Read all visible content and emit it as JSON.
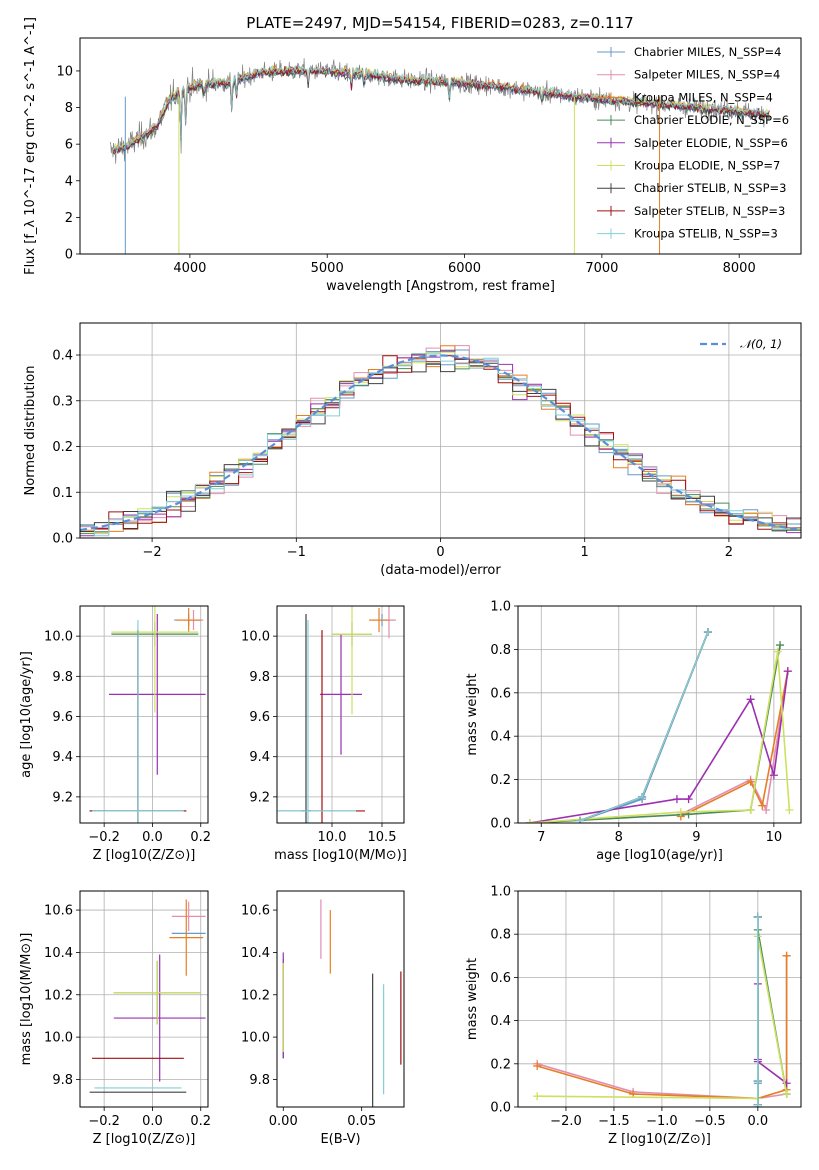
{
  "chart_data": [
    {
      "id": "spectrum",
      "type": "line",
      "title": "PLATE=2497, MJD=54154, FIBERID=0283, z=0.117",
      "xlabel": "wavelength [Angstrom, rest frame]",
      "ylabel": "Flux [f_λ 10^-17 erg cm^-2 s^-1 A^-1]",
      "xlim": [
        3200,
        8450
      ],
      "ylim": [
        0,
        11.8
      ],
      "xticks": [
        "4000",
        "5000",
        "6000",
        "7000",
        "8000"
      ],
      "yticks": [
        "0",
        "2",
        "4",
        "6",
        "8",
        "10"
      ],
      "grid": false,
      "legend_position": "top-right",
      "observed_spectrum_color": "#808080",
      "observed_range": [
        3420,
        8220
      ],
      "spectrum_shape": [
        [
          3420,
          5.6
        ],
        [
          3550,
          5.9
        ],
        [
          3650,
          6.4
        ],
        [
          3760,
          7.0
        ],
        [
          3850,
          8.4
        ],
        [
          3950,
          9.0
        ],
        [
          4100,
          9.3
        ],
        [
          4300,
          9.4
        ],
        [
          4500,
          9.9
        ],
        [
          4700,
          10.0
        ],
        [
          5000,
          10.0
        ],
        [
          5300,
          9.8
        ],
        [
          5600,
          9.5
        ],
        [
          5900,
          9.4
        ],
        [
          6200,
          9.2
        ],
        [
          6500,
          8.9
        ],
        [
          6800,
          8.6
        ],
        [
          7100,
          8.4
        ],
        [
          7400,
          8.2
        ],
        [
          7700,
          8.0
        ],
        [
          8000,
          7.8
        ],
        [
          8220,
          7.6
        ]
      ],
      "series": [
        {
          "name": "Chabrier MILES, N_SSP=4",
          "color": "#6699cc"
        },
        {
          "name": "Salpeter MILES, N_SSP=4",
          "color": "#e28fb0"
        },
        {
          "name": "Kroupa MILES, N_SSP=4",
          "color": "#e67e22"
        },
        {
          "name": "Chabrier ELODIE, N_SSP=6",
          "color": "#4a8a5a"
        },
        {
          "name": "Salpeter ELODIE, N_SSP=6",
          "color": "#9b30b0"
        },
        {
          "name": "Kroupa ELODIE, N_SSP=7",
          "color": "#cfe060"
        },
        {
          "name": "Chabrier STELIB, N_SSP=3",
          "color": "#404040"
        },
        {
          "name": "Salpeter STELIB, N_SSP=3",
          "color": "#a01010"
        },
        {
          "name": "Kroupa STELIB, N_SSP=3",
          "color": "#80d0d8"
        }
      ]
    },
    {
      "id": "residuals",
      "type": "histogram",
      "xlabel": "(data-model)/error",
      "ylabel": "Normed distribution",
      "xlim": [
        -2.5,
        2.5
      ],
      "ylim": [
        0,
        0.47
      ],
      "xticks": [
        "−2",
        "−1",
        "0",
        "1",
        "2"
      ],
      "yticks": [
        "0.0",
        "0.1",
        "0.2",
        "0.3",
        "0.4"
      ],
      "grid": true,
      "legend_position": "top-right",
      "reference_curve": {
        "name": "𝒩(0, 1)",
        "mean": 0,
        "sigma": 1,
        "color": "#5a8fd8"
      },
      "bin_width": 0.1
    },
    {
      "id": "age-Z",
      "type": "errorbar",
      "xlabel": "Z [log10(Z/Z⊙)]",
      "ylabel": "age  [log10(age/yr)]",
      "xlim": [
        -0.3,
        0.23
      ],
      "ylim": [
        9.07,
        10.15
      ],
      "xticks": [
        "−0.2",
        "0.0",
        "0.2"
      ],
      "yticks": [
        "9.2",
        "9.4",
        "9.6",
        "9.8",
        "10.0"
      ],
      "grid": true,
      "points": [
        {
          "color": "#6699cc",
          "x": 0.15,
          "y": 10.08,
          "xe": 0.06,
          "ye": 0.03
        },
        {
          "color": "#e28fb0",
          "x": 0.17,
          "y": 10.08,
          "xe": 0.04,
          "ye": 0.05
        },
        {
          "color": "#e67e22",
          "x": 0.15,
          "y": 10.08,
          "xe": 0.05,
          "ye": 0.06
        },
        {
          "color": "#4a8a5a",
          "x": 0.01,
          "y": 10.01,
          "xe": 0.18,
          "ye": 0.06
        },
        {
          "color": "#9b30b0",
          "x": 0.02,
          "y": 9.71,
          "xe": 0.2,
          "ye": 0.4
        },
        {
          "color": "#cfe060",
          "x": 0.01,
          "y": 10.02,
          "xe": 0.18,
          "ye": 0.4
        },
        {
          "color": "#404040",
          "x": -0.06,
          "y": 9.13,
          "xe": 0.2,
          "ye": 0.9
        },
        {
          "color": "#a01010",
          "x": -0.06,
          "y": 9.13,
          "xe": 0.2,
          "ye": 0.9
        },
        {
          "color": "#80d0d8",
          "x": -0.06,
          "y": 9.13,
          "xe": 0.19,
          "ye": 0.95
        }
      ]
    },
    {
      "id": "age-mass",
      "type": "errorbar",
      "xlabel": "mass [log10(M/M⊙)]",
      "ylabel": "",
      "xlim": [
        9.45,
        10.72
      ],
      "ylim": [
        9.07,
        10.15
      ],
      "xticks": [
        "10.0",
        "10.5"
      ],
      "yticks": [
        "9.2",
        "9.4",
        "9.6",
        "9.8",
        "10.0"
      ],
      "grid": true,
      "points": [
        {
          "color": "#6699cc",
          "x": 10.5,
          "y": 10.08,
          "xe": 0.12,
          "ye": 0.03
        },
        {
          "color": "#e28fb0",
          "x": 10.57,
          "y": 10.08,
          "xe": 0.07,
          "ye": 0.09
        },
        {
          "color": "#e67e22",
          "x": 10.47,
          "y": 10.08,
          "xe": 0.1,
          "ye": 0.06
        },
        {
          "color": "#4a8a5a",
          "x": 10.2,
          "y": 10.01,
          "xe": 0.2,
          "ye": 0.06
        },
        {
          "color": "#9b30b0",
          "x": 10.09,
          "y": 9.71,
          "xe": 0.21,
          "ye": 0.3
        },
        {
          "color": "#cfe060",
          "x": 10.2,
          "y": 10.01,
          "xe": 0.2,
          "ye": 0.4
        },
        {
          "color": "#404040",
          "x": 9.74,
          "y": 9.13,
          "xe": 0.05,
          "ye": 0.98
        },
        {
          "color": "#a01010",
          "x": 9.9,
          "y": 9.13,
          "xe": 0.43,
          "ye": 0.9
        },
        {
          "color": "#80d0d8",
          "x": 9.76,
          "y": 9.13,
          "xe": 0.48,
          "ye": 0.95
        }
      ]
    },
    {
      "id": "weight-age",
      "type": "line",
      "xlabel": "age  [log10(age/yr)]",
      "ylabel": "mass weight",
      "xlim": [
        6.7,
        10.35
      ],
      "ylim": [
        0,
        1.0
      ],
      "xticks": [
        "7",
        "8",
        "9",
        "10"
      ],
      "yticks": [
        "0.0",
        "0.2",
        "0.4",
        "0.6",
        "0.8",
        "1.0"
      ],
      "grid": true,
      "series": [
        {
          "color": "#6699cc",
          "x": [
            7.5,
            8.3,
            9.15
          ],
          "y": [
            0.01,
            0.11,
            0.88
          ]
        },
        {
          "color": "#e28fb0",
          "x": [
            8.8,
            9.7,
            9.9,
            10.18
          ],
          "y": [
            0.04,
            0.2,
            0.06,
            0.7
          ]
        },
        {
          "color": "#e67e22",
          "x": [
            8.8,
            9.7,
            9.85,
            10.18
          ],
          "y": [
            0.03,
            0.19,
            0.08,
            0.7
          ]
        },
        {
          "color": "#4a8a5a",
          "x": [
            6.85,
            8.9,
            9.7,
            10.08
          ],
          "y": [
            0.0,
            0.04,
            0.06,
            0.82
          ]
        },
        {
          "color": "#9b30b0",
          "x": [
            6.85,
            8.75,
            8.9,
            9.7,
            10.0,
            10.18
          ],
          "y": [
            0.0,
            0.11,
            0.11,
            0.57,
            0.22,
            0.7
          ]
        },
        {
          "color": "#cfe060",
          "x": [
            6.85,
            8.8,
            9.7,
            10.05,
            10.2
          ],
          "y": [
            0.0,
            0.05,
            0.06,
            0.79,
            0.06
          ]
        },
        {
          "color": "#404040",
          "x": [
            7.5,
            8.3,
            9.15
          ],
          "y": [
            0.01,
            0.12,
            0.88
          ]
        },
        {
          "color": "#a01010",
          "x": [
            7.5,
            8.3,
            9.15
          ],
          "y": [
            0.01,
            0.12,
            0.88
          ]
        },
        {
          "color": "#80d0d8",
          "x": [
            7.5,
            8.3,
            9.15
          ],
          "y": [
            0.01,
            0.12,
            0.88
          ]
        }
      ]
    },
    {
      "id": "mass-Z",
      "type": "errorbar",
      "xlabel": "Z [log10(Z/Z⊙)]",
      "ylabel": "mass [log10(M/M⊙)]",
      "xlim": [
        -0.3,
        0.23
      ],
      "ylim": [
        9.67,
        10.69
      ],
      "xticks": [
        "−0.2",
        "0.0",
        "0.2"
      ],
      "yticks": [
        "9.8",
        "10.0",
        "10.2",
        "10.4",
        "10.6"
      ],
      "grid": true,
      "points": [
        {
          "color": "#6699cc",
          "x": 0.15,
          "y": 10.49,
          "xe": 0.07,
          "ye": 0.0
        },
        {
          "color": "#e28fb0",
          "x": 0.15,
          "y": 10.57,
          "xe": 0.07,
          "ye": 0.07
        },
        {
          "color": "#e67e22",
          "x": 0.14,
          "y": 10.47,
          "xe": 0.07,
          "ye": 0.18
        },
        {
          "color": "#4a8a5a",
          "x": 0.02,
          "y": 10.21,
          "xe": 0.18,
          "ye": 0.15
        },
        {
          "color": "#9b30b0",
          "x": 0.03,
          "y": 10.09,
          "xe": 0.19,
          "ye": 0.3
        },
        {
          "color": "#cfe060",
          "x": 0.02,
          "y": 10.21,
          "xe": 0.18,
          "ye": 0.15
        },
        {
          "color": "#404040",
          "x": -0.06,
          "y": 9.74,
          "xe": 0.2,
          "ye": 0.0
        },
        {
          "color": "#a01010",
          "x": -0.06,
          "y": 9.9,
          "xe": 0.19,
          "ye": 0.0
        },
        {
          "color": "#80d0d8",
          "x": -0.06,
          "y": 9.76,
          "xe": 0.18,
          "ye": 0.0
        }
      ]
    },
    {
      "id": "mass-ebv",
      "type": "errorbar",
      "xlabel": "E(B-V)",
      "ylabel": "",
      "xlim": [
        -0.004,
        0.077
      ],
      "ylim": [
        9.67,
        10.69
      ],
      "xticks": [
        "0.00",
        "0.05"
      ],
      "yticks": [
        "9.8",
        "10.0",
        "10.2",
        "10.4",
        "10.6"
      ],
      "grid": false,
      "points": [
        {
          "color": "#6699cc",
          "x": 0.0,
          "y": 10.15,
          "xe": 0,
          "ye": 0.22
        },
        {
          "color": "#e28fb0",
          "x": 0.024,
          "y": 10.51,
          "xe": 0,
          "ye": 0.14
        },
        {
          "color": "#e67e22",
          "x": 0.03,
          "y": 10.45,
          "xe": 0,
          "ye": 0.15
        },
        {
          "color": "#4a8a5a",
          "x": 0.0,
          "y": 10.12,
          "xe": 0,
          "ye": 0.22
        },
        {
          "color": "#9b30b0",
          "x": 0.0,
          "y": 10.15,
          "xe": 0,
          "ye": 0.25
        },
        {
          "color": "#cfe060",
          "x": 0.0,
          "y": 10.14,
          "xe": 0,
          "ye": 0.21
        },
        {
          "color": "#404040",
          "x": 0.057,
          "y": 9.98,
          "xe": 0,
          "ye": 0.32
        },
        {
          "color": "#a01010",
          "x": 0.075,
          "y": 10.09,
          "xe": 0,
          "ye": 0.22
        },
        {
          "color": "#80d0d8",
          "x": 0.064,
          "y": 9.99,
          "xe": 0,
          "ye": 0.26
        }
      ]
    },
    {
      "id": "weight-Z",
      "type": "line",
      "xlabel": "Z [log10(Z/Z⊙)]",
      "ylabel": "mass weight",
      "xlim": [
        -2.5,
        0.45
      ],
      "ylim": [
        0,
        1.0
      ],
      "xticks": [
        "−2.0",
        "−1.5",
        "−1.0",
        "−0.5",
        "0.0"
      ],
      "yticks": [
        "0.0",
        "0.2",
        "0.4",
        "0.6",
        "0.8",
        "1.0"
      ],
      "grid": true,
      "series": [
        {
          "color": "#6699cc",
          "x": [
            0.0,
            0.0,
            0.0
          ],
          "y": [
            0.01,
            0.11,
            0.88
          ]
        },
        {
          "color": "#e28fb0",
          "x": [
            -2.3,
            -1.3,
            0.0,
            0.3,
            0.3
          ],
          "y": [
            0.2,
            0.07,
            0.04,
            0.06,
            0.7
          ]
        },
        {
          "color": "#e67e22",
          "x": [
            -2.3,
            -1.3,
            0.0,
            0.3,
            0.3
          ],
          "y": [
            0.19,
            0.06,
            0.04,
            0.08,
            0.7
          ]
        },
        {
          "color": "#4a8a5a",
          "x": [
            0.0,
            0.0,
            0.0,
            0.3
          ],
          "y": [
            0.0,
            0.04,
            0.82,
            0.06
          ]
        },
        {
          "color": "#9b30b0",
          "x": [
            0.0,
            0.0,
            0.0,
            0.3
          ],
          "y": [
            0.57,
            0.22,
            0.21,
            0.11
          ]
        },
        {
          "color": "#cfe060",
          "x": [
            -2.3,
            0.0,
            0.0,
            0.3
          ],
          "y": [
            0.05,
            0.04,
            0.79,
            0.06
          ]
        },
        {
          "color": "#404040",
          "x": [
            0.0,
            0.0,
            0.0
          ],
          "y": [
            0.01,
            0.12,
            0.88
          ]
        },
        {
          "color": "#a01010",
          "x": [
            0.0,
            0.0,
            0.0
          ],
          "y": [
            0.01,
            0.12,
            0.88
          ]
        },
        {
          "color": "#80d0d8",
          "x": [
            0.0,
            0.0,
            0.0
          ],
          "y": [
            0.01,
            0.12,
            0.88
          ]
        }
      ]
    }
  ]
}
